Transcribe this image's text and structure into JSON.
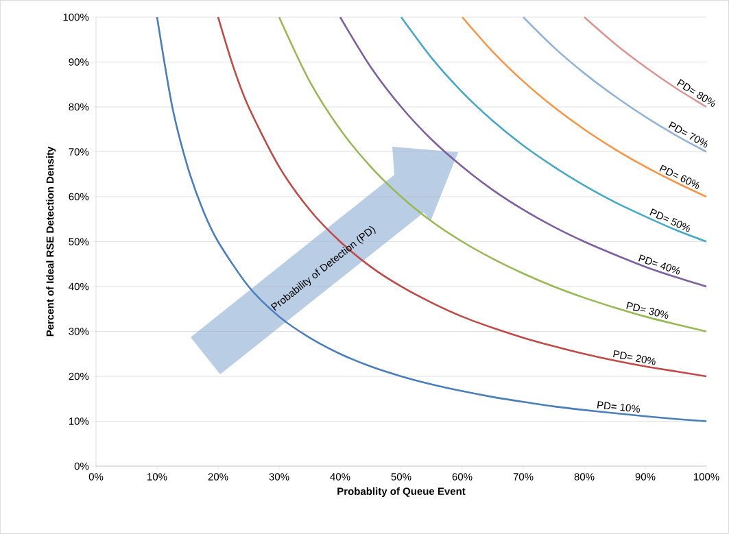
{
  "chart_data": {
    "type": "line",
    "xlabel": "Probablity of Queue Event",
    "ylabel": "Percent of Ideal RSE Detection Density",
    "annotations": [
      "Probability of Detection (PD)"
    ],
    "xlim": [
      0,
      100
    ],
    "ylim": [
      0,
      100
    ],
    "xticks": [
      {
        "value": 0,
        "label": "0%"
      },
      {
        "value": 10,
        "label": "10%"
      },
      {
        "value": 20,
        "label": "20%"
      },
      {
        "value": 30,
        "label": "30%"
      },
      {
        "value": 40,
        "label": "40%"
      },
      {
        "value": 50,
        "label": "50%"
      },
      {
        "value": 60,
        "label": "60%"
      },
      {
        "value": 70,
        "label": "70%"
      },
      {
        "value": 80,
        "label": "80%"
      },
      {
        "value": 90,
        "label": "90%"
      },
      {
        "value": 100,
        "label": "100%"
      }
    ],
    "yticks": [
      {
        "value": 0,
        "label": "0%"
      },
      {
        "value": 10,
        "label": "10%"
      },
      {
        "value": 20,
        "label": "20%"
      },
      {
        "value": 30,
        "label": "30%"
      },
      {
        "value": 40,
        "label": "40%"
      },
      {
        "value": 50,
        "label": "50%"
      },
      {
        "value": 60,
        "label": "60%"
      },
      {
        "value": 70,
        "label": "70%"
      },
      {
        "value": 80,
        "label": "80%"
      },
      {
        "value": 90,
        "label": "90%"
      },
      {
        "value": 100,
        "label": "100%"
      }
    ],
    "grid": "y",
    "legend": false,
    "marker": "none",
    "line_style": "solid",
    "series": [
      {
        "name": "PD= 10%",
        "color": "#4a7ebb",
        "x": [
          10,
          12.5,
          15,
          17.5,
          20,
          25,
          30,
          35,
          40,
          45,
          50,
          55,
          60,
          65,
          70,
          75,
          80,
          85,
          90,
          95,
          100
        ],
        "values": [
          100,
          80,
          66.7,
          57.1,
          50,
          40,
          33.3,
          28.6,
          25,
          22.2,
          20,
          18.2,
          16.7,
          15.4,
          14.3,
          13.3,
          12.5,
          11.8,
          11.1,
          10.5,
          10
        ]
      },
      {
        "name": "PD= 20%",
        "color": "#be4b48",
        "x": [
          20,
          22.5,
          25,
          30,
          35,
          40,
          45,
          50,
          55,
          60,
          65,
          70,
          75,
          80,
          85,
          90,
          95,
          100
        ],
        "values": [
          100,
          88.9,
          80,
          66.7,
          57.1,
          50,
          44.4,
          40,
          36.4,
          33.3,
          30.8,
          28.6,
          26.7,
          25,
          23.5,
          22.2,
          21.1,
          20
        ]
      },
      {
        "name": "PD= 30%",
        "color": "#98b954",
        "x": [
          30,
          35,
          40,
          45,
          50,
          55,
          60,
          65,
          70,
          75,
          80,
          85,
          90,
          95,
          100
        ],
        "values": [
          100,
          85.7,
          75,
          66.7,
          60,
          54.5,
          50,
          46.2,
          42.9,
          40,
          37.5,
          35.3,
          33.3,
          31.6,
          30
        ]
      },
      {
        "name": "PD= 40%",
        "color": "#7d60a0",
        "x": [
          40,
          45,
          50,
          55,
          60,
          65,
          70,
          75,
          80,
          85,
          90,
          95,
          100
        ],
        "values": [
          100,
          88.9,
          80,
          72.7,
          66.7,
          61.5,
          57.1,
          53.3,
          50,
          47.1,
          44.4,
          42.1,
          40
        ]
      },
      {
        "name": "PD= 50%",
        "color": "#46aac5",
        "x": [
          50,
          55,
          60,
          65,
          70,
          75,
          80,
          85,
          90,
          95,
          100
        ],
        "values": [
          100,
          90.9,
          83.3,
          76.9,
          71.4,
          66.7,
          62.5,
          58.8,
          55.6,
          52.6,
          50
        ]
      },
      {
        "name": "PD= 60%",
        "color": "#f79646",
        "x": [
          60,
          65,
          70,
          75,
          80,
          85,
          90,
          95,
          100
        ],
        "values": [
          100,
          92.3,
          85.7,
          80,
          75,
          70.6,
          66.7,
          63.2,
          60
        ]
      },
      {
        "name": "PD= 70%",
        "color": "#95b3d7",
        "x": [
          70,
          75,
          80,
          85,
          90,
          95,
          100
        ],
        "values": [
          100,
          93.3,
          87.5,
          82.4,
          77.8,
          73.7,
          70
        ]
      },
      {
        "name": "PD= 80%",
        "color": "#d99694",
        "x": [
          80,
          85,
          90,
          95,
          100
        ],
        "values": [
          100,
          94.1,
          88.9,
          84.2,
          80
        ]
      }
    ]
  }
}
